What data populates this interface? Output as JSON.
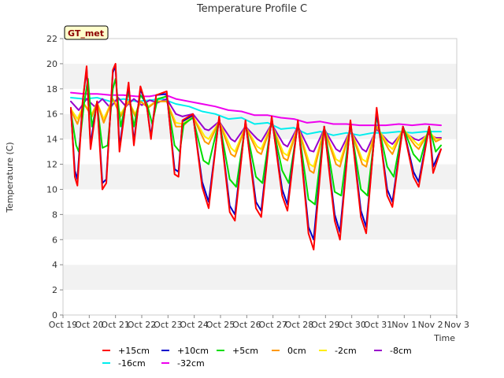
{
  "chart_data": {
    "type": "line",
    "title": "Temperature Profile C",
    "xlabel": "Time",
    "ylabel": "Temperature (C)",
    "badge": "GT_met",
    "ylim": [
      0,
      22
    ],
    "yticks": [
      0,
      2,
      4,
      6,
      8,
      10,
      12,
      14,
      16,
      18,
      20,
      22
    ],
    "xlim": [
      0,
      15
    ],
    "xticks": [
      {
        "pos": 0,
        "label": "Oct 19"
      },
      {
        "pos": 1,
        "label": "Oct 20"
      },
      {
        "pos": 2,
        "label": "Oct 21"
      },
      {
        "pos": 3,
        "label": "Oct 22"
      },
      {
        "pos": 4,
        "label": "Oct 23"
      },
      {
        "pos": 5,
        "label": "Oct 24"
      },
      {
        "pos": 6,
        "label": "Oct 25"
      },
      {
        "pos": 7,
        "label": "Oct 26"
      },
      {
        "pos": 8,
        "label": "Oct 27"
      },
      {
        "pos": 9,
        "label": "Oct 28"
      },
      {
        "pos": 10,
        "label": "Oct 29"
      },
      {
        "pos": 11,
        "label": "Oct 30"
      },
      {
        "pos": 12,
        "label": "Oct 31"
      },
      {
        "pos": 13,
        "label": "Nov 1"
      },
      {
        "pos": 14,
        "label": "Nov 2"
      },
      {
        "pos": 15,
        "label": "Nov 3"
      }
    ],
    "grid": "horizontal bands",
    "legend_position": "bottom",
    "series": [
      {
        "name": "+15cm",
        "color": "#ff0000",
        "x": [
          0.3,
          0.45,
          0.55,
          0.75,
          0.9,
          1.05,
          1.3,
          1.5,
          1.65,
          1.9,
          2.0,
          2.15,
          2.5,
          2.7,
          2.95,
          3.2,
          3.35,
          3.55,
          3.95,
          4.25,
          4.4,
          4.55,
          4.95,
          5.3,
          5.55,
          5.95,
          6.35,
          6.55,
          6.95,
          7.35,
          7.55,
          7.95,
          8.35,
          8.55,
          8.95,
          9.35,
          9.55,
          9.95,
          10.35,
          10.55,
          10.95,
          11.35,
          11.55,
          11.95,
          12.35,
          12.55,
          12.95,
          13.35,
          13.55,
          13.95,
          14.1,
          14.4
        ],
        "y": [
          16.5,
          11.0,
          10.3,
          17.0,
          19.8,
          13.2,
          17.0,
          10.0,
          10.5,
          19.5,
          20.0,
          13.0,
          18.5,
          13.5,
          18.2,
          16.5,
          14.0,
          17.5,
          17.8,
          11.2,
          11.0,
          15.5,
          16.0,
          10.2,
          8.5,
          15.8,
          8.2,
          7.5,
          15.5,
          8.5,
          7.8,
          15.8,
          9.5,
          8.3,
          15.5,
          6.5,
          5.2,
          15.0,
          7.5,
          6.0,
          15.5,
          7.8,
          6.5,
          16.5,
          9.5,
          8.6,
          15.0,
          11.0,
          10.2,
          15.0,
          11.3,
          13.2
        ]
      },
      {
        "name": "+10cm",
        "color": "#0000cc",
        "x": [
          0.3,
          0.45,
          0.55,
          0.75,
          0.9,
          1.05,
          1.3,
          1.5,
          1.65,
          1.9,
          2.0,
          2.15,
          2.5,
          2.7,
          2.95,
          3.2,
          3.35,
          3.55,
          3.95,
          4.25,
          4.4,
          4.55,
          4.95,
          5.3,
          5.55,
          5.95,
          6.35,
          6.55,
          6.95,
          7.35,
          7.55,
          7.95,
          8.35,
          8.55,
          8.95,
          9.35,
          9.55,
          9.95,
          10.35,
          10.55,
          10.95,
          11.35,
          11.55,
          11.95,
          12.35,
          12.55,
          12.95,
          13.35,
          13.55,
          13.95,
          14.1,
          14.4
        ],
        "y": [
          16.3,
          11.5,
          10.8,
          17.0,
          19.6,
          13.6,
          17.0,
          10.5,
          10.8,
          19.3,
          19.8,
          13.4,
          18.3,
          13.8,
          18.0,
          16.5,
          14.2,
          17.5,
          17.6,
          11.6,
          11.4,
          15.4,
          15.9,
          10.6,
          9.0,
          15.7,
          8.7,
          8.0,
          15.4,
          9.0,
          8.3,
          15.7,
          10.0,
          8.8,
          15.4,
          7.0,
          6.0,
          15.0,
          8.0,
          6.6,
          15.4,
          8.3,
          7.0,
          16.2,
          10.0,
          9.0,
          15.0,
          11.4,
          10.6,
          15.0,
          11.8,
          13.2
        ]
      },
      {
        "name": "+5cm",
        "color": "#00dd00",
        "x": [
          0.3,
          0.5,
          0.6,
          0.8,
          0.95,
          1.1,
          1.3,
          1.5,
          1.7,
          1.9,
          2.0,
          2.2,
          2.5,
          2.7,
          2.95,
          3.2,
          3.4,
          3.6,
          3.95,
          4.25,
          4.45,
          4.6,
          4.95,
          5.35,
          5.55,
          5.95,
          6.35,
          6.6,
          6.95,
          7.35,
          7.6,
          7.95,
          8.35,
          8.6,
          8.95,
          9.35,
          9.6,
          9.95,
          10.35,
          10.6,
          10.95,
          11.35,
          11.6,
          11.95,
          12.35,
          12.6,
          12.95,
          13.35,
          13.6,
          13.95,
          14.2,
          14.4
        ],
        "y": [
          16.2,
          13.5,
          13.0,
          16.8,
          18.8,
          15.0,
          16.8,
          13.3,
          13.5,
          18.0,
          18.8,
          15.0,
          17.8,
          15.0,
          17.5,
          16.8,
          15.2,
          17.2,
          17.4,
          13.5,
          13.0,
          15.2,
          15.7,
          12.3,
          12.0,
          15.5,
          10.8,
          10.2,
          15.2,
          11.0,
          10.5,
          15.5,
          11.5,
          10.5,
          15.2,
          9.2,
          8.8,
          15.0,
          9.8,
          9.5,
          15.2,
          10.0,
          9.5,
          15.8,
          11.8,
          11.0,
          15.0,
          12.8,
          12.2,
          15.0,
          13.0,
          13.5
        ]
      },
      {
        "name": "0cm",
        "color": "#ff9900",
        "x": [
          0.3,
          0.55,
          0.8,
          1.1,
          1.3,
          1.55,
          1.9,
          2.2,
          2.5,
          2.75,
          2.95,
          3.25,
          3.55,
          3.95,
          4.3,
          4.55,
          4.95,
          5.4,
          5.55,
          5.95,
          6.4,
          6.55,
          6.95,
          7.4,
          7.55,
          7.95,
          8.4,
          8.55,
          8.95,
          9.4,
          9.55,
          9.95,
          10.4,
          10.55,
          10.95,
          11.4,
          11.55,
          11.95,
          12.4,
          12.55,
          12.95,
          13.4,
          13.55,
          13.95,
          14.2,
          14.4
        ],
        "y": [
          16.3,
          15.2,
          16.8,
          15.8,
          16.9,
          15.3,
          17.2,
          15.8,
          17.0,
          15.8,
          17.0,
          16.5,
          17.0,
          17.0,
          15.0,
          15.0,
          15.8,
          13.8,
          13.6,
          15.4,
          12.8,
          12.6,
          15.0,
          13.0,
          12.8,
          15.2,
          12.5,
          12.3,
          15.0,
          11.5,
          11.3,
          14.8,
          12.0,
          11.8,
          14.8,
          12.0,
          11.8,
          15.0,
          13.2,
          12.8,
          14.8,
          13.5,
          13.2,
          14.6,
          13.8,
          14.0
        ]
      },
      {
        "name": "-2cm",
        "color": "#ffee00",
        "x": [
          0.3,
          0.55,
          0.8,
          1.1,
          1.3,
          1.55,
          1.9,
          2.2,
          2.5,
          2.75,
          2.95,
          3.25,
          3.55,
          3.95,
          4.3,
          4.55,
          4.95,
          5.4,
          5.55,
          5.95,
          6.4,
          6.55,
          6.95,
          7.4,
          7.55,
          7.95,
          8.4,
          8.55,
          8.95,
          9.4,
          9.55,
          9.95,
          10.4,
          10.55,
          10.95,
          11.4,
          11.55,
          11.95,
          12.4,
          12.55,
          12.95,
          13.4,
          13.55,
          13.95,
          14.2,
          14.4
        ],
        "y": [
          16.4,
          15.6,
          16.8,
          16.0,
          16.9,
          15.6,
          17.2,
          16.0,
          17.0,
          16.0,
          17.0,
          16.6,
          17.0,
          17.0,
          15.3,
          15.2,
          15.8,
          14.2,
          14.0,
          15.4,
          13.3,
          13.0,
          15.0,
          13.4,
          13.2,
          15.2,
          12.9,
          12.7,
          15.0,
          12.0,
          11.8,
          14.8,
          12.4,
          12.2,
          14.8,
          12.4,
          12.2,
          15.0,
          13.5,
          13.2,
          14.8,
          13.8,
          13.5,
          14.6,
          14.0,
          14.0
        ]
      },
      {
        "name": "-8cm",
        "color": "#9900cc",
        "x": [
          0.3,
          0.6,
          0.9,
          1.2,
          1.5,
          1.8,
          2.1,
          2.4,
          2.7,
          3.0,
          3.3,
          3.6,
          3.95,
          4.3,
          4.55,
          4.95,
          5.4,
          5.55,
          5.95,
          6.4,
          6.55,
          6.95,
          7.4,
          7.55,
          7.95,
          8.4,
          8.55,
          8.95,
          9.4,
          9.55,
          9.95,
          10.4,
          10.55,
          10.95,
          11.4,
          11.55,
          11.95,
          12.4,
          12.55,
          12.95,
          13.4,
          13.55,
          13.95,
          14.2,
          14.4
        ],
        "y": [
          17.0,
          16.3,
          17.2,
          16.6,
          17.2,
          16.5,
          17.3,
          16.6,
          17.2,
          16.7,
          17.1,
          16.9,
          17.2,
          16.0,
          15.8,
          16.0,
          14.8,
          14.7,
          15.4,
          14.0,
          13.8,
          15.0,
          14.0,
          13.8,
          15.2,
          13.6,
          13.4,
          15.0,
          13.1,
          13.0,
          14.8,
          13.2,
          13.0,
          14.7,
          13.2,
          13.0,
          14.8,
          13.8,
          13.6,
          14.6,
          14.0,
          13.9,
          14.4,
          14.1,
          14.1
        ]
      },
      {
        "name": "-16cm",
        "color": "#00eeee",
        "x": [
          0.3,
          0.8,
          1.3,
          1.8,
          2.3,
          2.8,
          3.3,
          3.8,
          4.3,
          4.8,
          5.3,
          5.8,
          6.3,
          6.8,
          7.3,
          7.8,
          8.3,
          8.8,
          9.3,
          9.8,
          10.3,
          10.8,
          11.3,
          11.8,
          12.3,
          12.8,
          13.3,
          13.8,
          14.4
        ],
        "y": [
          17.3,
          17.2,
          17.3,
          17.0,
          17.2,
          17.0,
          17.1,
          17.2,
          16.8,
          16.6,
          16.2,
          16.0,
          15.6,
          15.7,
          15.2,
          15.3,
          14.8,
          14.9,
          14.4,
          14.6,
          14.3,
          14.5,
          14.3,
          14.5,
          14.5,
          14.6,
          14.5,
          14.6,
          14.6
        ]
      },
      {
        "name": "-32cm",
        "color": "#ee00ee",
        "x": [
          0.3,
          0.8,
          1.3,
          1.8,
          2.3,
          2.8,
          3.3,
          3.8,
          4.3,
          4.8,
          5.3,
          5.8,
          6.3,
          6.8,
          7.3,
          7.8,
          8.3,
          8.8,
          9.3,
          9.8,
          10.3,
          10.8,
          11.3,
          11.8,
          12.3,
          12.8,
          13.3,
          13.8,
          14.4
        ],
        "y": [
          17.7,
          17.6,
          17.6,
          17.5,
          17.5,
          17.4,
          17.4,
          17.6,
          17.2,
          17.0,
          16.8,
          16.6,
          16.3,
          16.2,
          15.9,
          15.9,
          15.7,
          15.6,
          15.3,
          15.4,
          15.2,
          15.2,
          15.1,
          15.1,
          15.1,
          15.2,
          15.1,
          15.2,
          15.1
        ]
      }
    ]
  }
}
